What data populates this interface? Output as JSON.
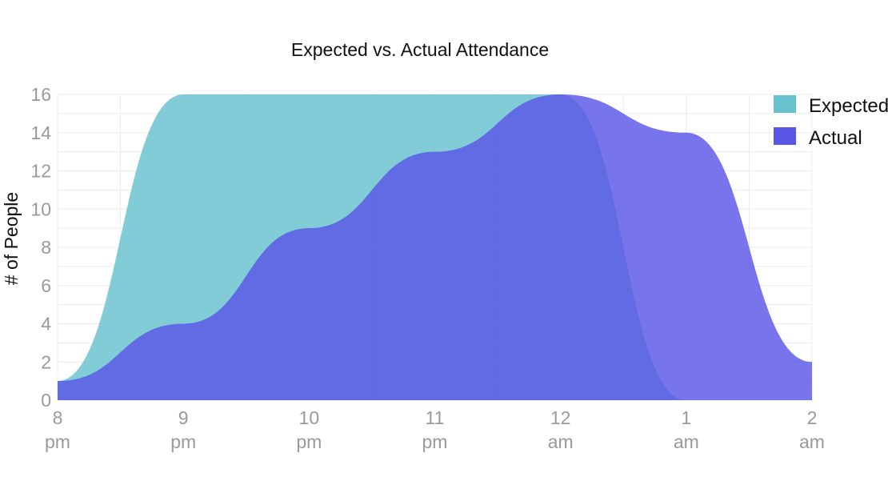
{
  "chart_data": {
    "type": "area",
    "title": "Expected vs. Actual Attendance",
    "xlabel": "",
    "ylabel": "# of People",
    "ylim": [
      0,
      16
    ],
    "yticks": [
      0,
      2,
      4,
      6,
      8,
      10,
      12,
      14,
      16
    ],
    "grid": true,
    "legend_position": "top-right",
    "x_tick_labels": [
      {
        "x": 0,
        "line1": "8",
        "line2": "pm"
      },
      {
        "x": 1,
        "line1": "9",
        "line2": "pm"
      },
      {
        "x": 2,
        "line1": "10",
        "line2": "pm"
      },
      {
        "x": 3,
        "line1": "11",
        "line2": "pm"
      },
      {
        "x": 4,
        "line1": "12",
        "line2": "am"
      },
      {
        "x": 5,
        "line1": "1",
        "line2": "am"
      },
      {
        "x": 6,
        "line1": "2",
        "line2": "am"
      }
    ],
    "series": [
      {
        "name": "Expected",
        "color": "#67c1cf",
        "x": [
          0,
          1,
          2,
          3,
          4,
          5,
          6
        ],
        "values": [
          1,
          16,
          16,
          16,
          16,
          0,
          null
        ]
      },
      {
        "name": "Actual",
        "color": "#5a55e6",
        "x": [
          0,
          1,
          2,
          3,
          4,
          5,
          6
        ],
        "values": [
          1,
          4,
          9,
          13,
          16,
          14,
          2
        ]
      }
    ]
  }
}
